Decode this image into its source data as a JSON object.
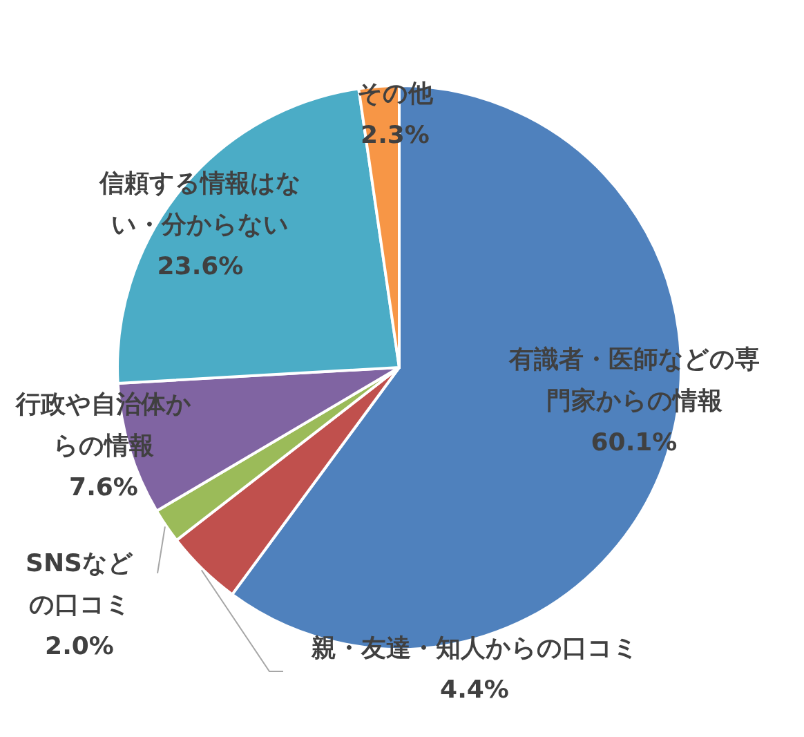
{
  "chart_data": {
    "type": "pie",
    "categories": [
      "有識者・医師などの専門家からの情報",
      "親・友達・知人からの口コミ",
      "SNSなどの口コミ",
      "行政や自治体からの情報",
      "信頼する情報はない・分からない",
      "その他"
    ],
    "values": [
      60.1,
      4.4,
      2.0,
      7.6,
      23.6,
      2.3
    ],
    "value_labels": [
      "60.1%",
      "4.4%",
      "2.0%",
      "7.6%",
      "23.6%",
      "2.3%"
    ],
    "colors": [
      "#4f81bd",
      "#c0504d",
      "#9bbb59",
      "#8064a2",
      "#4bacc6",
      "#f79646"
    ]
  }
}
